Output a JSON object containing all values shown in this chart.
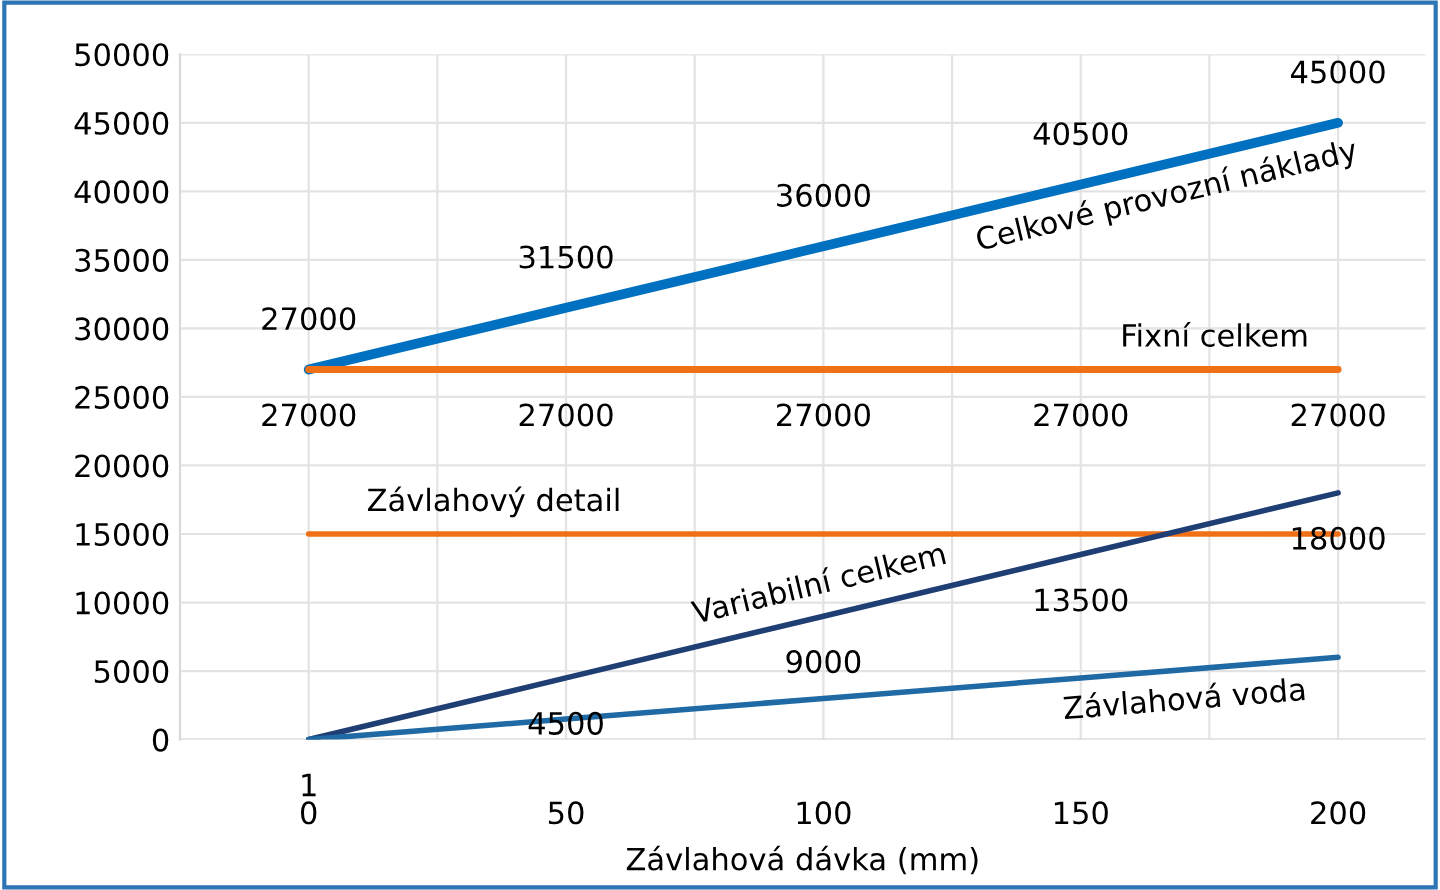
{
  "chart_data": {
    "type": "line",
    "xlabel": "Závlahová dávka (mm)",
    "x": [
      0,
      50,
      100,
      150,
      200
    ],
    "xlim": [
      -25,
      217
    ],
    "xticks": [
      0,
      {
        "value": 25,
        "label": null
      },
      50,
      {
        "value": 75,
        "label": null
      },
      100,
      {
        "value": 125,
        "label": null
      },
      150,
      {
        "value": 175,
        "label": null
      },
      200
    ],
    "ylim": [
      0,
      50000
    ],
    "yticks": [
      0,
      5000,
      10000,
      15000,
      20000,
      25000,
      30000,
      35000,
      40000,
      45000,
      50000
    ],
    "grid": true,
    "legend": false,
    "marker": "none",
    "line_style": "solid",
    "series": [
      {
        "name": "Celkové provozní náklady",
        "color": "#0070c0",
        "values": [
          27000,
          31500,
          36000,
          40500,
          45000
        ],
        "value_labels": [
          "27000",
          "31500",
          "36000",
          "40500",
          "45000"
        ]
      },
      {
        "name": "Fixní celkem",
        "color": "#f07016",
        "values": [
          27000,
          27000,
          27000,
          27000,
          27000
        ],
        "value_labels": [
          "27000",
          "27000",
          "27000",
          "27000",
          "27000"
        ]
      },
      {
        "name": "Závlahový detail",
        "color": "#f07016",
        "values": [
          15000,
          15000,
          15000,
          15000,
          15000
        ]
      },
      {
        "name": "Variabilní celkem",
        "color": "#1f3f74",
        "values": [
          1,
          4500,
          9000,
          13500,
          18000
        ],
        "value_labels": [
          "1",
          "4500",
          "9000",
          "13500",
          "18000"
        ]
      },
      {
        "name": "Závlahová voda",
        "color": "#1f6aa5",
        "values": [
          0,
          1500,
          3000,
          4500,
          6000
        ]
      }
    ]
  }
}
